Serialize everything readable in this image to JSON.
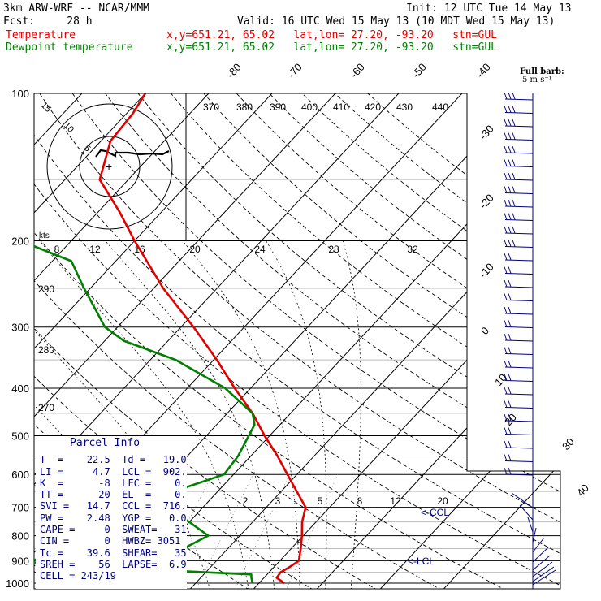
{
  "header": {
    "title": "3km ARW-WRF -- NCAR/MMM",
    "init": "Init: 12 UTC Tue 14 May 13",
    "fcst": "Fcst:     28 h",
    "valid": "Valid: 16 UTC Wed 15 May 13 (10 MDT Wed 15 May 13)"
  },
  "legend": [
    {
      "label": "Temperature",
      "info": "x,y=651.21, 65.02   lat,lon= 27.20, -93.20   stn=GUL",
      "color": "#e00000"
    },
    {
      "label": "Dewpoint temperature",
      "info": "x,y=651.21, 65.02   lat,lon= 27.20, -93.20   stn=GUL",
      "color": "#008000"
    }
  ],
  "barb_title": "Full barb:",
  "barb_unit": "5 m s⁻¹",
  "colors": {
    "temperature": "#e00000",
    "dewpoint": "#008000",
    "parcel_info_bg": "#ffffff",
    "barbs": "#00007f",
    "text_blue": "#00007f"
  },
  "chart_data": {
    "type": "line",
    "diagram": "skew-T log-P",
    "pressure_axis": {
      "label_values": [
        100,
        200,
        300,
        400,
        500,
        600,
        700,
        800,
        900,
        1000
      ],
      "range_hPa": [
        100,
        1000
      ],
      "scale": "log"
    },
    "isotherm_labels": [
      "-80",
      "-70",
      "-60",
      "-50",
      "-40",
      "-30",
      "-20",
      "-10",
      "0",
      "10",
      "20",
      "30",
      "40"
    ],
    "theta_labels": [
      "370",
      "380",
      "390",
      "400",
      "410",
      "420",
      "430",
      "440"
    ],
    "mixing_ratio_labels": [
      "2",
      "3",
      "5",
      "8",
      "12",
      "20"
    ],
    "hodograph_speed_labels": [
      "8",
      "12",
      "16",
      "20",
      "24",
      "28",
      "32"
    ],
    "hodograph_unit": "kts",
    "hodograph_ring_labels": [
      "15",
      "10",
      "5"
    ],
    "side_labels": [
      "290",
      "280",
      "270"
    ],
    "annotations": [
      "CCL",
      "LCL"
    ],
    "series": [
      {
        "name": "Temperature",
        "points": [
          [
            1000,
            24.0
          ],
          [
            975,
            22.0
          ],
          [
            950,
            21.8
          ],
          [
            925,
            22.5
          ],
          [
            900,
            23.0
          ],
          [
            850,
            21.5
          ],
          [
            800,
            19.8
          ],
          [
            750,
            17.8
          ],
          [
            700,
            16.2
          ],
          [
            650,
            12.5
          ],
          [
            600,
            8.5
          ],
          [
            550,
            4.2
          ],
          [
            500,
            -0.8
          ],
          [
            450,
            -6.0
          ],
          [
            400,
            -12.5
          ],
          [
            350,
            -19.5
          ],
          [
            300,
            -28.0
          ],
          [
            250,
            -38.5
          ],
          [
            200,
            -50.0
          ],
          [
            175,
            -56.5
          ],
          [
            150,
            -64.5
          ],
          [
            125,
            -68.5
          ],
          [
            110,
            -69.0
          ],
          [
            100,
            -70.0
          ]
        ]
      },
      {
        "name": "Dewpoint temperature",
        "points": [
          [
            1000,
            19.0
          ],
          [
            975,
            18.0
          ],
          [
            960,
            17.5
          ],
          [
            925,
            -10.0
          ],
          [
            900,
            -22.0
          ],
          [
            875,
            -3.0
          ],
          [
            850,
            3.0
          ],
          [
            800,
            5.0
          ],
          [
            750,
            0.0
          ],
          [
            700,
            -6.0
          ],
          [
            660,
            -8.0
          ],
          [
            600,
            -1.5
          ],
          [
            550,
            -2.0
          ],
          [
            475,
            -4.0
          ],
          [
            450,
            -6.0
          ],
          [
            400,
            -14.0
          ],
          [
            350,
            -26.0
          ],
          [
            320,
            -37.0
          ],
          [
            300,
            -42.0
          ],
          [
            250,
            -51.0
          ],
          [
            220,
            -57.0
          ],
          [
            200,
            -68.0
          ],
          [
            175,
            -75.0
          ],
          [
            150,
            -80.0
          ],
          [
            125,
            -85.0
          ],
          [
            110,
            -88.0
          ],
          [
            100,
            -90.0
          ]
        ]
      }
    ]
  },
  "parcel_info": {
    "title": "Parcel Info",
    "rows": [
      "T  =    22.5  Td =   19.0",
      "LI =     4.7  LCL =  902.",
      "K  =      -8  LFC =    0.",
      "TT =      20  EL  =    0.",
      "SVI =   14.7  CCL =  716.",
      "PW =    2.48  YGP =   0.0",
      "CAPE =     0  SWEAT=   31",
      "CIN =      0  HWBZ= 3051",
      "Tc =    39.6  SHEAR=   35",
      "SREH =    56  LAPSE=  6.9",
      "CELL = 243/19"
    ]
  }
}
